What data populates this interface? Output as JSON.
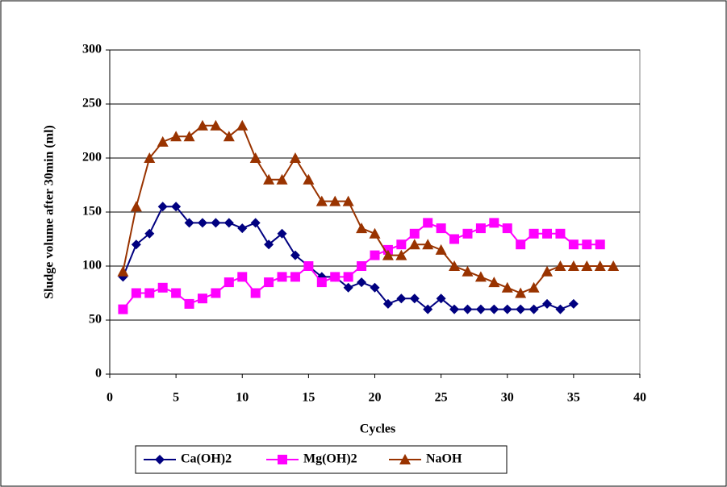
{
  "chart_data": {
    "type": "line",
    "x_label": "Cycles",
    "y_label": "Sludge volume after 30min (ml)",
    "xlim": [
      0,
      40
    ],
    "xticks": [
      0,
      5,
      10,
      15,
      20,
      25,
      30,
      35,
      40
    ],
    "ylim": [
      0,
      300
    ],
    "yticks": [
      0,
      50,
      100,
      150,
      200,
      250,
      300
    ],
    "grid": true,
    "legend": "bottom",
    "series": [
      {
        "name": "Ca(OH)2",
        "color": "#000080",
        "marker": "diamond",
        "x": [
          1,
          2,
          3,
          4,
          5,
          6,
          7,
          8,
          9,
          10,
          11,
          12,
          13,
          14,
          15,
          16,
          17,
          18,
          19,
          20,
          21,
          22,
          23,
          24,
          25,
          26,
          27,
          28,
          29,
          30,
          31,
          32,
          33,
          34,
          35
        ],
        "values": [
          90,
          120,
          130,
          155,
          155,
          140,
          140,
          140,
          140,
          135,
          140,
          120,
          130,
          110,
          100,
          90,
          90,
          80,
          85,
          80,
          65,
          70,
          70,
          60,
          70,
          60,
          60,
          60,
          60,
          60,
          60,
          60,
          65,
          60,
          65
        ]
      },
      {
        "name": "Mg(OH)2",
        "color": "#ff00ff",
        "marker": "square",
        "x": [
          1,
          2,
          3,
          4,
          5,
          6,
          7,
          8,
          9,
          10,
          11,
          12,
          13,
          14,
          15,
          16,
          17,
          18,
          19,
          20,
          21,
          22,
          23,
          24,
          25,
          26,
          27,
          28,
          29,
          30,
          31,
          32,
          33,
          34,
          35,
          36,
          37
        ],
        "values": [
          60,
          75,
          75,
          80,
          75,
          65,
          70,
          75,
          85,
          90,
          75,
          85,
          90,
          90,
          100,
          85,
          90,
          90,
          100,
          110,
          115,
          120,
          130,
          140,
          135,
          125,
          130,
          135,
          140,
          135,
          120,
          130,
          130,
          130,
          120,
          120,
          120
        ]
      },
      {
        "name": "NaOH",
        "color": "#993300",
        "marker": "triangle",
        "x": [
          1,
          2,
          3,
          4,
          5,
          6,
          7,
          8,
          9,
          10,
          11,
          12,
          13,
          14,
          15,
          16,
          17,
          18,
          19,
          20,
          21,
          22,
          23,
          24,
          25,
          26,
          27,
          28,
          29,
          30,
          31,
          32,
          33,
          34,
          35,
          36,
          37,
          38
        ],
        "values": [
          95,
          155,
          200,
          215,
          220,
          220,
          230,
          230,
          220,
          230,
          200,
          180,
          180,
          200,
          180,
          160,
          160,
          160,
          135,
          130,
          110,
          110,
          120,
          120,
          115,
          100,
          95,
          90,
          85,
          80,
          75,
          80,
          95,
          100,
          100,
          100,
          100,
          100
        ]
      }
    ]
  }
}
